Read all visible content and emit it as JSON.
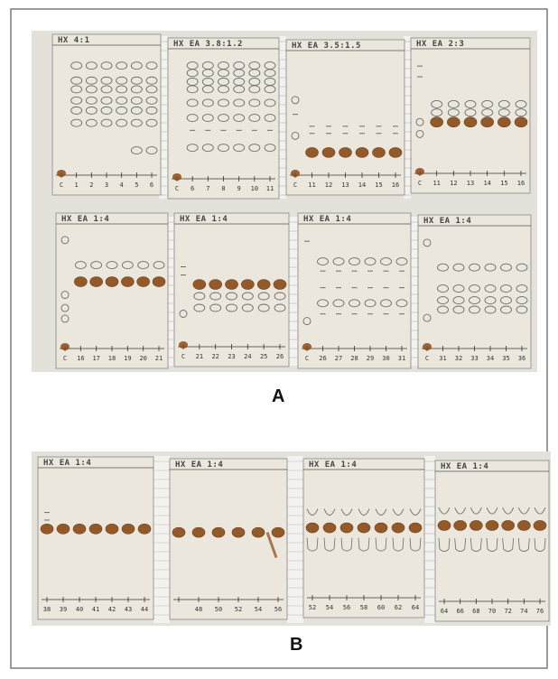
{
  "figure": {
    "panel_a_label": "A",
    "panel_b_label": "B",
    "colors": {
      "background": "#ffffff",
      "frame": "#7a7a7a",
      "plate": "#ece7dc",
      "spot_dark": "#8a4a16",
      "spot_outline": "#6b6b6b",
      "backing_grid": "#b8b8b8"
    }
  },
  "panel_a": {
    "row1": [
      {
        "label": "HX 4:1",
        "lanes": [
          "C",
          "1",
          "2",
          "3",
          "4",
          "5",
          "6"
        ]
      },
      {
        "label": "HX EA 3.8:1.2",
        "lanes": [
          "C",
          "6",
          "7",
          "8",
          "9",
          "10",
          "11"
        ]
      },
      {
        "label": "HX EA 3.5:1.5",
        "lanes": [
          "C",
          "11",
          "12",
          "13",
          "14",
          "15",
          "16"
        ]
      },
      {
        "label": "HX EA 2:3",
        "lanes": [
          "C",
          "11",
          "12",
          "13",
          "14",
          "15",
          "16"
        ]
      }
    ],
    "row2": [
      {
        "label": "HX EA 1:4",
        "lanes": [
          "C",
          "16",
          "17",
          "18",
          "19",
          "20",
          "21"
        ]
      },
      {
        "label": "HX EA 1:4",
        "lanes": [
          "C",
          "21",
          "22",
          "23",
          "24",
          "25",
          "26"
        ]
      },
      {
        "label": "HX EA 1:4",
        "lanes": [
          "C",
          "26",
          "27",
          "28",
          "29",
          "30",
          "31"
        ]
      },
      {
        "label": "HX EA 1:4",
        "lanes": [
          "C",
          "31",
          "32",
          "33",
          "34",
          "35",
          "36"
        ]
      }
    ]
  },
  "panel_b": {
    "plates": [
      {
        "label": "HX EA 1:4",
        "lanes": [
          "38",
          "39",
          "40",
          "41",
          "42",
          "43",
          "44"
        ]
      },
      {
        "label": "HX EA 1:4",
        "lanes": [
          "",
          "48",
          "50",
          "52",
          "54",
          "56"
        ]
      },
      {
        "label": "HX EA 1:4",
        "lanes": [
          "52",
          "54",
          "56",
          "58",
          "60",
          "62",
          "64"
        ]
      },
      {
        "label": "HX EA 1:4",
        "lanes": [
          "64",
          "66",
          "68",
          "70",
          "72",
          "74",
          "76"
        ]
      }
    ]
  }
}
